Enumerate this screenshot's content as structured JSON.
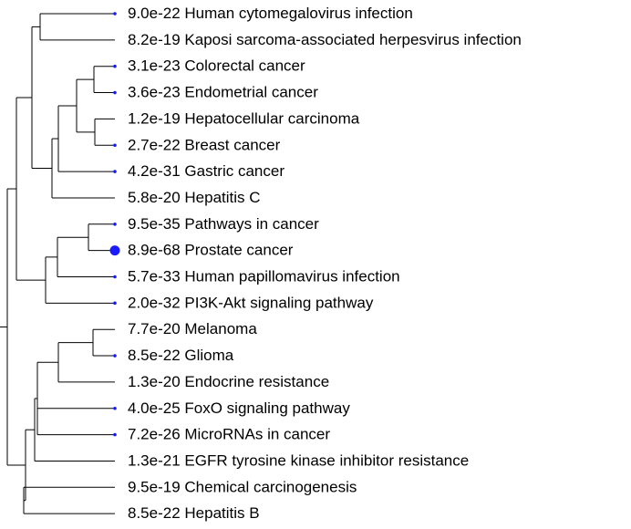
{
  "colors": {
    "branch": "#000000",
    "dot": "#1a1aff",
    "text": "#000000"
  },
  "leaves": [
    {
      "id": "hcmv",
      "pvalue": "9.0e-22",
      "term": "Human cytomegalovirus infection",
      "dot_size": "small"
    },
    {
      "id": "kshv",
      "pvalue": "8.2e-19",
      "term": "Kaposi sarcoma-associated herpesvirus infection",
      "dot_size": "none"
    },
    {
      "id": "colorectal",
      "pvalue": "3.1e-23",
      "term": "Colorectal cancer",
      "dot_size": "small"
    },
    {
      "id": "endometrial",
      "pvalue": "3.6e-23",
      "term": "Endometrial cancer",
      "dot_size": "small"
    },
    {
      "id": "hcc",
      "pvalue": "1.2e-19",
      "term": "Hepatocellular carcinoma",
      "dot_size": "none"
    },
    {
      "id": "breast",
      "pvalue": "2.7e-22",
      "term": "Breast cancer",
      "dot_size": "small"
    },
    {
      "id": "gastric",
      "pvalue": "4.2e-31",
      "term": "Gastric cancer",
      "dot_size": "small"
    },
    {
      "id": "hepc",
      "pvalue": "5.8e-20",
      "term": "Hepatitis C",
      "dot_size": "none"
    },
    {
      "id": "pathways",
      "pvalue": "9.5e-35",
      "term": "Pathways in cancer",
      "dot_size": "small"
    },
    {
      "id": "prostate",
      "pvalue": "8.9e-68",
      "term": "Prostate cancer",
      "dot_size": "large"
    },
    {
      "id": "hpv",
      "pvalue": "5.7e-33",
      "term": "Human papillomavirus infection",
      "dot_size": "small"
    },
    {
      "id": "pi3k",
      "pvalue": "2.0e-32",
      "term": "PI3K-Akt signaling pathway",
      "dot_size": "small"
    },
    {
      "id": "melanoma",
      "pvalue": "7.7e-20",
      "term": "Melanoma",
      "dot_size": "none"
    },
    {
      "id": "glioma",
      "pvalue": "8.5e-22",
      "term": "Glioma",
      "dot_size": "small"
    },
    {
      "id": "endocrine",
      "pvalue": "1.3e-20",
      "term": "Endocrine resistance",
      "dot_size": "none"
    },
    {
      "id": "foxo",
      "pvalue": "4.0e-25",
      "term": "FoxO signaling pathway",
      "dot_size": "small"
    },
    {
      "id": "microrna",
      "pvalue": "7.2e-26",
      "term": "MicroRNAs in cancer",
      "dot_size": "small"
    },
    {
      "id": "egfr",
      "pvalue": "1.3e-21",
      "term": "EGFR tyrosine kinase inhibitor resistance",
      "dot_size": "none"
    },
    {
      "id": "chemical",
      "pvalue": "9.5e-19",
      "term": "Chemical carcinogenesis",
      "dot_size": "none"
    },
    {
      "id": "hepb",
      "pvalue": "8.5e-22",
      "term": "Hepatitis B",
      "dot_size": "none"
    }
  ]
}
